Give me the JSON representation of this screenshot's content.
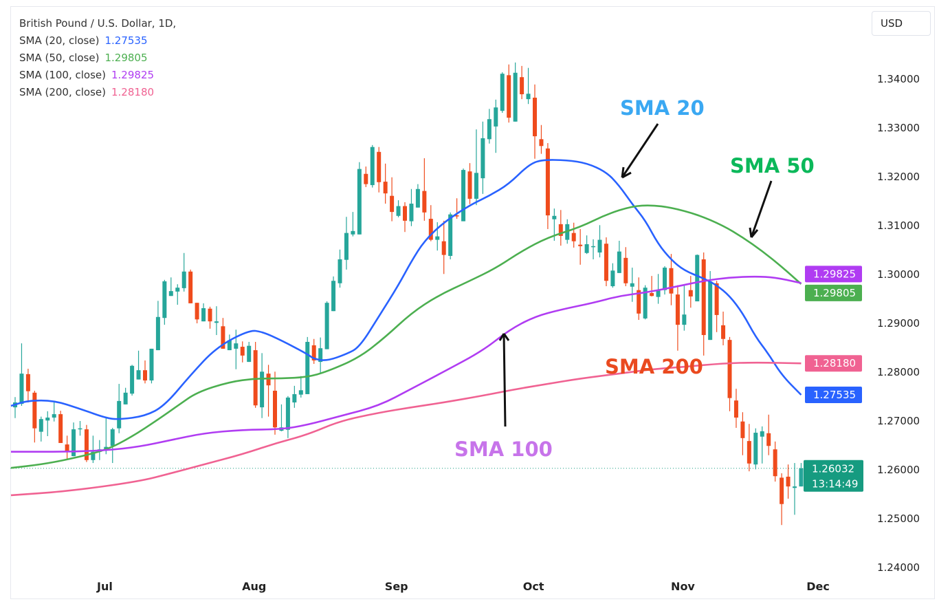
{
  "legend": {
    "title": "British Pound / U.S. Dollar, 1D, ",
    "items": [
      {
        "label": "SMA (20, close)",
        "value": "1.27535",
        "color": "#2962ff"
      },
      {
        "label": "SMA (50, close)",
        "value": "1.29805",
        "color": "#4caf50"
      },
      {
        "label": "SMA (100, close)",
        "value": "1.29825",
        "color": "#b03cf2"
      },
      {
        "label": "SMA (200, close)",
        "value": "1.28180",
        "color": "#f06292"
      }
    ]
  },
  "currency": "USD",
  "annotations": {
    "sma20": {
      "text": "SMA 20",
      "color": "#3aa8f2"
    },
    "sma50": {
      "text": "SMA 50",
      "color": "#0bb85a"
    },
    "sma100": {
      "text": "SMA 100",
      "color": "#c774ea"
    },
    "sma200": {
      "text": "SMA 200",
      "color": "#ea4a1f"
    }
  },
  "last_price": {
    "value": "1.26032",
    "countdown": "13:14:49",
    "color": "#169b80"
  },
  "chart_data": {
    "type": "candlestick",
    "title": "British Pound / U.S. Dollar, 1D",
    "up_color": "#26a69a",
    "down_color": "#ef4b1c",
    "ylim": [
      1.2365,
      1.3465
    ],
    "y_ticks": [
      "1.34000",
      "1.33000",
      "1.32000",
      "1.31000",
      "1.30000",
      "1.29000",
      "1.28000",
      "1.27000",
      "1.26000",
      "1.25000",
      "1.24000"
    ],
    "x_ticks": [
      {
        "label": "Jul",
        "bar": 13.8
      },
      {
        "label": "Aug",
        "bar": 36.8
      },
      {
        "label": "Sep",
        "bar": 58.7
      },
      {
        "label": "Oct",
        "bar": 79.8
      },
      {
        "label": "Nov",
        "bar": 102.8
      },
      {
        "label": "Dec",
        "bar": 123.6
      }
    ],
    "ohlc": [
      [
        1.2728,
        1.2749,
        1.2706,
        1.2738
      ],
      [
        1.2735,
        1.2859,
        1.2731,
        1.2797
      ],
      [
        1.2796,
        1.2807,
        1.2738,
        1.2761
      ],
      [
        1.2758,
        1.2762,
        1.2656,
        1.2685
      ],
      [
        1.2678,
        1.2709,
        1.2658,
        1.2704
      ],
      [
        1.2701,
        1.272,
        1.2669,
        1.2707
      ],
      [
        1.2707,
        1.2739,
        1.2699,
        1.2714
      ],
      [
        1.2714,
        1.2721,
        1.2655,
        1.2655
      ],
      [
        1.2652,
        1.267,
        1.2621,
        1.2637
      ],
      [
        1.2628,
        1.2697,
        1.2628,
        1.2683
      ],
      [
        1.2683,
        1.27,
        1.267,
        1.2685
      ],
      [
        1.2683,
        1.2692,
        1.2616,
        1.262
      ],
      [
        1.262,
        1.267,
        1.2614,
        1.2637
      ],
      [
        1.2637,
        1.2661,
        1.262,
        1.2642
      ],
      [
        1.2642,
        1.2706,
        1.2632,
        1.2647
      ],
      [
        1.2649,
        1.2686,
        1.2614,
        1.2683
      ],
      [
        1.2685,
        1.2776,
        1.2675,
        1.2741
      ],
      [
        1.2734,
        1.2768,
        1.2734,
        1.2758
      ],
      [
        1.2756,
        1.2815,
        1.2752,
        1.2813
      ],
      [
        1.2785,
        1.2844,
        1.2785,
        1.2804
      ],
      [
        1.2804,
        1.2824,
        1.2777,
        1.2783
      ],
      [
        1.2783,
        1.2848,
        1.2777,
        1.2848
      ],
      [
        1.2845,
        1.2946,
        1.2845,
        1.2913
      ],
      [
        1.2911,
        1.2989,
        1.2897,
        1.2986
      ],
      [
        1.2956,
        1.2994,
        1.2956,
        1.2966
      ],
      [
        1.2965,
        1.298,
        1.2938,
        1.2973
      ],
      [
        1.2972,
        1.3044,
        1.2965,
        1.3006
      ],
      [
        1.3006,
        1.301,
        1.2941,
        1.2941
      ],
      [
        1.2942,
        1.2942,
        1.29,
        1.2908
      ],
      [
        1.2904,
        1.2941,
        1.2904,
        1.2931
      ],
      [
        1.293,
        1.2934,
        1.2889,
        1.2904
      ],
      [
        1.2901,
        1.2935,
        1.2876,
        1.2904
      ],
      [
        1.2894,
        1.2911,
        1.2848,
        1.2848
      ],
      [
        1.2845,
        1.2877,
        1.2845,
        1.2865
      ],
      [
        1.2848,
        1.2887,
        1.2806,
        1.2859
      ],
      [
        1.2852,
        1.2863,
        1.282,
        1.2834
      ],
      [
        1.2821,
        1.2862,
        1.2821,
        1.2854
      ],
      [
        1.2845,
        1.2862,
        1.2727,
        1.2732
      ],
      [
        1.2728,
        1.2839,
        1.2706,
        1.2801
      ],
      [
        1.2797,
        1.2815,
        1.2709,
        1.2773
      ],
      [
        1.2762,
        1.2801,
        1.2672,
        1.2687
      ],
      [
        1.268,
        1.2734,
        1.2679,
        1.2687
      ],
      [
        1.2682,
        1.2751,
        1.2665,
        1.2748
      ],
      [
        1.2738,
        1.2772,
        1.2727,
        1.2755
      ],
      [
        1.2754,
        1.2792,
        1.2748,
        1.2763
      ],
      [
        1.2755,
        1.2872,
        1.2755,
        1.2862
      ],
      [
        1.2855,
        1.2868,
        1.2817,
        1.2824
      ],
      [
        1.2821,
        1.2871,
        1.2797,
        1.2849
      ],
      [
        1.2847,
        1.2945,
        1.2847,
        1.2942
      ],
      [
        1.2925,
        1.2996,
        1.2925,
        1.2987
      ],
      [
        1.2982,
        1.3051,
        1.2973,
        1.3031
      ],
      [
        1.303,
        1.3118,
        1.301,
        1.3085
      ],
      [
        1.3082,
        1.3128,
        1.3078,
        1.3089
      ],
      [
        1.3082,
        1.323,
        1.3082,
        1.3216
      ],
      [
        1.3206,
        1.3221,
        1.3179,
        1.3185
      ],
      [
        1.3183,
        1.3265,
        1.3178,
        1.3261
      ],
      [
        1.3251,
        1.3261,
        1.3168,
        1.3189
      ],
      [
        1.319,
        1.3227,
        1.3145,
        1.3166
      ],
      [
        1.3161,
        1.3199,
        1.3109,
        1.3128
      ],
      [
        1.312,
        1.3152,
        1.3117,
        1.314
      ],
      [
        1.314,
        1.3148,
        1.3087,
        1.311
      ],
      [
        1.3109,
        1.3175,
        1.3099,
        1.3145
      ],
      [
        1.3137,
        1.3185,
        1.3137,
        1.3175
      ],
      [
        1.3171,
        1.3238,
        1.311,
        1.3127
      ],
      [
        1.3114,
        1.3142,
        1.3068,
        1.3071
      ],
      [
        1.3071,
        1.3107,
        1.3049,
        1.3078
      ],
      [
        1.3068,
        1.311,
        1.3001,
        1.304
      ],
      [
        1.3038,
        1.3127,
        1.3031,
        1.3123
      ],
      [
        1.3121,
        1.3156,
        1.3114,
        1.312
      ],
      [
        1.3109,
        1.3217,
        1.3109,
        1.3214
      ],
      [
        1.3211,
        1.3228,
        1.3144,
        1.3155
      ],
      [
        1.3155,
        1.3297,
        1.3142,
        1.3208
      ],
      [
        1.3197,
        1.3313,
        1.3165,
        1.3279
      ],
      [
        1.3277,
        1.3339,
        1.3268,
        1.3318
      ],
      [
        1.3303,
        1.3358,
        1.3249,
        1.3342
      ],
      [
        1.3335,
        1.3414,
        1.3331,
        1.3411
      ],
      [
        1.3408,
        1.343,
        1.3311,
        1.3321
      ],
      [
        1.3313,
        1.3434,
        1.3313,
        1.3413
      ],
      [
        1.3404,
        1.3427,
        1.3359,
        1.3369
      ],
      [
        1.3359,
        1.3423,
        1.3349,
        1.337
      ],
      [
        1.3362,
        1.3389,
        1.3237,
        1.3283
      ],
      [
        1.3277,
        1.3306,
        1.3247,
        1.3263
      ],
      [
        1.3258,
        1.3269,
        1.3093,
        1.3121
      ],
      [
        1.3113,
        1.3135,
        1.3069,
        1.312
      ],
      [
        1.3103,
        1.3132,
        1.3059,
        1.3079
      ],
      [
        1.3071,
        1.3113,
        1.3063,
        1.3103
      ],
      [
        1.3085,
        1.3106,
        1.3055,
        1.3068
      ],
      [
        1.3061,
        1.3093,
        1.302,
        1.3058
      ],
      [
        1.3044,
        1.308,
        1.3042,
        1.3062
      ],
      [
        1.3056,
        1.3072,
        1.3031,
        1.3058
      ],
      [
        1.3045,
        1.3101,
        1.3035,
        1.3071
      ],
      [
        1.3063,
        1.3076,
        1.2976,
        1.2987
      ],
      [
        1.2976,
        1.3023,
        1.2973,
        1.3008
      ],
      [
        1.3003,
        1.3069,
        1.3003,
        1.3047
      ],
      [
        1.3034,
        1.3056,
        1.2976,
        1.2982
      ],
      [
        1.2975,
        1.3014,
        1.2944,
        1.2982
      ],
      [
        1.2968,
        1.2994,
        1.2907,
        1.292
      ],
      [
        1.291,
        1.2978,
        1.2908,
        1.2973
      ],
      [
        1.2962,
        1.2997,
        1.2955,
        1.2956
      ],
      [
        1.2954,
        1.3001,
        1.294,
        1.2969
      ],
      [
        1.2968,
        1.3017,
        1.2959,
        1.3014
      ],
      [
        1.3013,
        1.3042,
        1.2937,
        1.2961
      ],
      [
        1.2959,
        1.2978,
        1.2844,
        1.2897
      ],
      [
        1.2897,
        1.2979,
        1.2885,
        1.2918
      ],
      [
        1.2968,
        1.2997,
        1.2932,
        1.2955
      ],
      [
        1.2945,
        1.3041,
        1.2945,
        1.304
      ],
      [
        1.3031,
        1.3045,
        1.2834,
        1.2876
      ],
      [
        1.2866,
        1.3007,
        1.2866,
        1.2986
      ],
      [
        1.2982,
        1.2987,
        1.2882,
        1.2917
      ],
      [
        1.2896,
        1.2924,
        1.2855,
        1.2868
      ],
      [
        1.2866,
        1.2872,
        1.272,
        1.2747
      ],
      [
        1.2742,
        1.2766,
        1.2686,
        1.2707
      ],
      [
        1.2699,
        1.2718,
        1.263,
        1.2665
      ],
      [
        1.2659,
        1.2694,
        1.2597,
        1.2613
      ],
      [
        1.2611,
        1.2685,
        1.2601,
        1.2676
      ],
      [
        1.2668,
        1.2689,
        1.2613,
        1.2679
      ],
      [
        1.2675,
        1.2713,
        1.263,
        1.2649
      ],
      [
        1.2642,
        1.2658,
        1.2576,
        1.2587
      ],
      [
        1.2584,
        1.2593,
        1.2487,
        1.253
      ],
      [
        1.2586,
        1.2611,
        1.2541,
        1.2566
      ],
      [
        1.2563,
        1.2614,
        1.2508,
        1.2566
      ],
      [
        1.2566,
        1.2614,
        1.2566,
        1.26032
      ]
    ],
    "series": [
      {
        "name": "SMA (20, close)",
        "color": "#2962ff",
        "points": [
          [
            0,
            1.2731
          ],
          [
            2,
            1.2742
          ],
          [
            6,
            1.2742
          ],
          [
            10,
            1.2725
          ],
          [
            14,
            1.2706
          ],
          [
            16,
            1.2703
          ],
          [
            20,
            1.271
          ],
          [
            23,
            1.2731
          ],
          [
            27,
            1.2794
          ],
          [
            31,
            1.2851
          ],
          [
            36,
            1.2886
          ],
          [
            38,
            1.2883
          ],
          [
            41,
            1.2865
          ],
          [
            45,
            1.2837
          ],
          [
            46,
            1.2827
          ],
          [
            48,
            1.2823
          ],
          [
            51,
            1.2837
          ],
          [
            53,
            1.2851
          ],
          [
            56,
            1.2914
          ],
          [
            59,
            1.2978
          ],
          [
            61,
            1.3027
          ],
          [
            63,
            1.3069
          ],
          [
            66,
            1.3107
          ],
          [
            70,
            1.3142
          ],
          [
            73,
            1.3161
          ],
          [
            76,
            1.3185
          ],
          [
            79,
            1.3224
          ],
          [
            81,
            1.3235
          ],
          [
            85,
            1.3234
          ],
          [
            88,
            1.3228
          ],
          [
            91,
            1.321
          ],
          [
            93,
            1.3182
          ],
          [
            95,
            1.3144
          ],
          [
            97,
            1.3111
          ],
          [
            99,
            1.3062
          ],
          [
            101,
            1.303
          ],
          [
            103,
            1.3008
          ],
          [
            106,
            1.2992
          ],
          [
            108,
            1.2978
          ],
          [
            110,
            1.2956
          ],
          [
            112,
            1.2921
          ],
          [
            114,
            1.2872
          ],
          [
            116,
            1.2837
          ],
          [
            118,
            1.2794
          ],
          [
            121,
            1.27535
          ]
        ]
      },
      {
        "name": "SMA (50, close)",
        "color": "#4caf50",
        "points": [
          [
            0,
            1.2604
          ],
          [
            4,
            1.2611
          ],
          [
            8,
            1.2621
          ],
          [
            14,
            1.264
          ],
          [
            18,
            1.2668
          ],
          [
            22,
            1.2703
          ],
          [
            25,
            1.2731
          ],
          [
            28,
            1.2759
          ],
          [
            33,
            1.278
          ],
          [
            37,
            1.2787
          ],
          [
            41,
            1.2787
          ],
          [
            45,
            1.279
          ],
          [
            48,
            1.2801
          ],
          [
            53,
            1.283
          ],
          [
            57,
            1.2872
          ],
          [
            61,
            1.2921
          ],
          [
            65,
            1.2956
          ],
          [
            70,
            1.2987
          ],
          [
            74,
            1.3013
          ],
          [
            78,
            1.3048
          ],
          [
            82,
            1.3076
          ],
          [
            87,
            1.3097
          ],
          [
            91,
            1.3123
          ],
          [
            95,
            1.314
          ],
          [
            98,
            1.3142
          ],
          [
            101,
            1.3137
          ],
          [
            105,
            1.3123
          ],
          [
            109,
            1.31
          ],
          [
            112,
            1.3076
          ],
          [
            115,
            1.3048
          ],
          [
            118,
            1.3016
          ],
          [
            121,
            1.29805
          ]
        ]
      },
      {
        "name": "SMA (100, close)",
        "color": "#b03cf2",
        "points": [
          [
            0,
            1.2637
          ],
          [
            8,
            1.2637
          ],
          [
            14,
            1.264
          ],
          [
            19,
            1.2647
          ],
          [
            24,
            1.2661
          ],
          [
            29,
            1.2675
          ],
          [
            35,
            1.2682
          ],
          [
            41,
            1.2683
          ],
          [
            45,
            1.2692
          ],
          [
            50,
            1.271
          ],
          [
            56,
            1.2731
          ],
          [
            61,
            1.2766
          ],
          [
            66,
            1.2801
          ],
          [
            72,
            1.2844
          ],
          [
            76,
            1.2886
          ],
          [
            80,
            1.2914
          ],
          [
            84,
            1.2928
          ],
          [
            89,
            1.2942
          ],
          [
            93,
            1.2956
          ],
          [
            97,
            1.2963
          ],
          [
            101,
            1.2973
          ],
          [
            106,
            1.2987
          ],
          [
            110,
            1.2994
          ],
          [
            114,
            1.2996
          ],
          [
            117,
            1.2994
          ],
          [
            121,
            1.29825
          ]
        ]
      },
      {
        "name": "SMA (200, close)",
        "color": "#f06292",
        "points": [
          [
            0,
            1.2548
          ],
          [
            8,
            1.2556
          ],
          [
            19,
            1.2576
          ],
          [
            24,
            1.2593
          ],
          [
            29,
            1.2611
          ],
          [
            35,
            1.2632
          ],
          [
            40,
            1.2654
          ],
          [
            45,
            1.2672
          ],
          [
            50,
            1.27
          ],
          [
            56,
            1.2717
          ],
          [
            61,
            1.2728
          ],
          [
            66,
            1.2738
          ],
          [
            72,
            1.2752
          ],
          [
            77,
            1.2765
          ],
          [
            82,
            1.2776
          ],
          [
            87,
            1.2787
          ],
          [
            93,
            1.2797
          ],
          [
            98,
            1.2806
          ],
          [
            103,
            1.2811
          ],
          [
            109,
            1.2818
          ],
          [
            114,
            1.282
          ],
          [
            121,
            1.2818
          ]
        ]
      }
    ]
  }
}
